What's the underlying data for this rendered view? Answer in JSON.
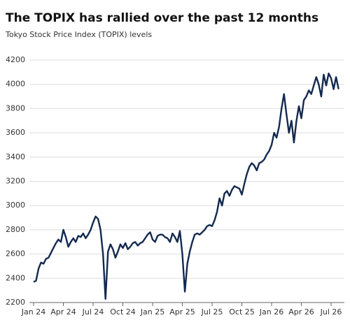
{
  "chart_data": {
    "type": "line",
    "title": "The TOPIX has rallied over the past 12 months",
    "subtitle": "Tokyo Stock Price Index (TOPIX) levels",
    "categories": [
      "Jan 24",
      null,
      null,
      null,
      null,
      null,
      null,
      null,
      null,
      null,
      null,
      null,
      "Apr 24",
      null,
      null,
      null,
      null,
      null,
      null,
      null,
      null,
      null,
      null,
      null,
      "Jul 24",
      null,
      null,
      null,
      null,
      null,
      null,
      null,
      null,
      null,
      null,
      null,
      "Oct 24",
      null,
      null,
      null,
      null,
      null,
      null,
      null,
      null,
      null,
      null,
      null,
      "Jan 25",
      null,
      null,
      null,
      null,
      null,
      null,
      null,
      null,
      null,
      null,
      null,
      "Apr 25",
      null,
      null,
      null,
      null,
      null,
      null,
      null,
      null,
      null,
      null,
      null,
      "Jul 25",
      null,
      null,
      null,
      null,
      null,
      null,
      null,
      null,
      null,
      null,
      null,
      "Oct 25",
      null,
      null,
      null,
      null,
      null,
      null,
      null,
      null,
      null,
      null,
      null,
      "Jan 26",
      null,
      null,
      null,
      null,
      null,
      null,
      null,
      null,
      null,
      null,
      null,
      "Apr 26",
      null,
      null,
      null,
      null,
      null,
      null,
      null,
      null,
      null,
      null,
      null,
      "Jul 26",
      null,
      null,
      null
    ],
    "values": [
      2370,
      2380,
      2480,
      2530,
      2520,
      2560,
      2570,
      2610,
      2650,
      2690,
      2720,
      2700,
      2800,
      2740,
      2660,
      2700,
      2730,
      2700,
      2750,
      2740,
      2770,
      2730,
      2760,
      2800,
      2860,
      2910,
      2890,
      2800,
      2600,
      2230,
      2620,
      2680,
      2640,
      2570,
      2620,
      2680,
      2650,
      2690,
      2640,
      2660,
      2690,
      2700,
      2670,
      2690,
      2700,
      2730,
      2760,
      2780,
      2720,
      2700,
      2750,
      2760,
      2760,
      2740,
      2730,
      2700,
      2770,
      2740,
      2700,
      2790,
      2600,
      2290,
      2520,
      2620,
      2700,
      2760,
      2770,
      2760,
      2780,
      2800,
      2830,
      2840,
      2830,
      2880,
      2950,
      3060,
      3000,
      3100,
      3120,
      3080,
      3130,
      3160,
      3150,
      3140,
      3090,
      3180,
      3260,
      3320,
      3350,
      3330,
      3290,
      3350,
      3360,
      3380,
      3420,
      3450,
      3500,
      3600,
      3560,
      3650,
      3800,
      3920,
      3750,
      3600,
      3700,
      3520,
      3700,
      3820,
      3720,
      3870,
      3900,
      3950,
      3920,
      3990,
      4060,
      4000,
      3900,
      4080,
      3990,
      4090,
      4050,
      3960,
      4060,
      3960
    ],
    "color": "#13294f",
    "ylim": [
      2200,
      4200
    ],
    "yticks": [
      2200,
      2400,
      2600,
      2800,
      3000,
      3200,
      3400,
      3600,
      3800,
      4000,
      4200
    ],
    "grid": true
  }
}
